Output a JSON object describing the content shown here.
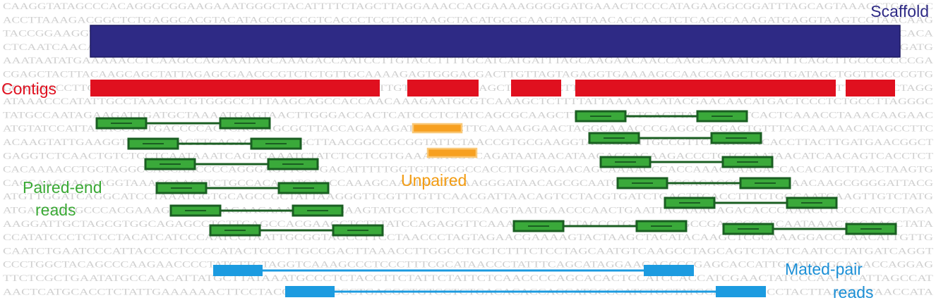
{
  "labels": {
    "scaffold": "Scaffold",
    "contigs": "Contigs",
    "paired_end_1": "Paired-end",
    "paired_end_2": "reads",
    "unpaired": "Unpaired",
    "mated_pair_1": "Mated-pair",
    "mated_pair_2": "reads"
  },
  "colors": {
    "scaffold": "#2e2a85",
    "scaffold_stroke": "#1c1960",
    "contig": "#e0101f",
    "paired_fill": "#3aa93a",
    "paired_stroke": "#1a5e22",
    "paired_label": "#3aa935",
    "unpaired_fill": "#f7a020",
    "unpaired_stroke": "#f9c877",
    "unpaired_label": "#f39c12",
    "mated": "#1c9be0",
    "mated_label": "#1b8fd6",
    "background_text": "#cfcfcf"
  },
  "background_sequence": [
    "CAAGGTATAGCCCACAGGGCGGAAGAAATGGGCTACATTTTCTAGCTTAGGAAACCACGAAAAGGGGGATGAAACTCCCCATAGAAGGCGGATTTAGCAGTAAAGCTGGACC",
    "ACCTTAAAGACGGCTCTGAGGCACGTACATACCGCCCGTCACCCTCCTCGTAAGCTACATGCGCAAGTAATTAACACCAACTCTCAGCCAAAGATGAGGTAAGTCGTAACAAG",
    "TACCGGAAGGTGTACTTGGATAACCAAAGTGTAGCTTAAACAAAGCATCTGGCTTACACCCAGAAGATTTCATATAACGCCTTATAAATTGAAGGCTCAGATGTATAACACA",
    "CTCAATCAACAACTTGGAACACTGTCACCTCTGAAATGCAATTATAGTCAGGCTACAGAATCAGTCATGTGCAAGACTTATCCATCGAATCACAAGCCAAAGTAATGGATG",
    "AAATAATATGAAAAACCTCAAGCCAGAAATAGCAAAGACCAATCCTTGTACCTTTTGCATCATGATTTAGCAAGAACAACCAAGCAAAATGAATTTCAGCTTGCCCCCCCGA",
    "CGAGCTACTTACAAGCAGCTATTAGAGCGAACCCGTCTCTGTTGCAAAAGAGTGGGACGACTTGTTAGTAGAGGTGAAAAGCCAACCGAGCTGGGTGATAGCTGGTTGCCCGTG",
    "GCAGAACCTTGACCGAAGTCTTTAAAGACTCAAGTTATGGACCGTTTGTAGAACAACAGCTTGGAGCTTACCCAATTACGCAAACTAGGTAAGAGTGCCTTTCATGGCTAGG",
    "ATAAACCCATATTGCCTAAACCTGTGGGCCTTTAAGCAGCCACCAACAAAGAATGCGTCAAAGCTCTTTTATTAAAAACATACGAACAACATGACTCCCTCTGCCTTAGGGC",
    "TATGCCAATAGAAGATTGATGCTAAAATGAGTAACTTGGGACCACTCATCCCTCTATCAGCGCAAGCTTACATCTGTGAGTTATACAGTTCACTCAAACCTAAACAAGAAC",
    "ATGTATCCATTAAACCTGTGACCCCACTCAGGAGCGCTTACCAGAAAGATTAGCCCTTCAAAAGGAACTAGGCAAACCCGAGGCCCGACTGTTTACCAAAAACATAGCCTTC",
    "ACAAGTATTGAAGGTGGCTTAAGTTCAGAGGAAAAGCTTAACGGCCGCGGTATTCTAACCGTGCGAAGGTAGCGAATTGCCGTTCAAACGACACCTTACTTGATGAACGGCT",
    "GAGGTCTCAACTGTCTCCTCAATAAATCAGTGAAATCTATCTCCTCGTGAAAAACGCCAGATAATAACATAAGACGAGAAGACCCTGTGGAATAACATCAACAGTCACCTCT",
    "CACAAAACCTGCTAGGCCACCAACCCCAGGGAGTTCCTGACATTTTTGGTGTTGGGCCACCTTGGAGAACAGCAAAACCCACCAAACAAAGACCACACATCTTAACTAAGTG",
    "CACCAAGGAGAAGGTAAACCAACTTCTGCCACAAATGAACCAAAGCAAATACCGCAAGGGATAACAGCGCAATCCTTCTACCCAGAGCCTTGGAAAACAAGCGGGGATTACG",
    "ATGTTGGATCAGGCATCCTAAATGGTGCAGCCGCTATTAAGGGTTCGTTTGTTCAACGATTAACAGTCCTACGTGATCTGAGTTCACCTTTCTGGCAATCAAGTTGTCTATG",
    "ATGACTCTTGCCCACGAAAGACCGAAAGAACAAAAGCAACAAGTATGCCTCTCTCCCAAGTAATGAACCCAACTGAATTACAAAGAGACACCCAAACCTCCCCATCCTAGA",
    "AAGGATTGCTAGCGTGGCAGAGCCTGTTGAGCCACGAAGCTCTTTATCCAGAGGTTCAAACCGGCCTTACCCTGTCAATGGCCGAGCCCCTCAATAAACTCGAACCTATA",
    "CCATATCCCTCTCCTACATCATCCCAATCCTAATTGCGGTAGCCTTCCTAACCCTAGTAGAACGAAAAGTACTAAGCTACATACAAGCTCGCAAAGGACCCAACATTGTTG",
    "CAATCTGAATCCCATTACCCCTCCCCATACTCCCTTGCCGACTTAAACCTTGGCCTGCTCTTTCTCCTAGCAATGTCAAGCCTAGCAGTCTACTCAATCCTATGATCAGGT",
    "CCCTGGCTACAGCCCAAGAACCCCTATCTTGTAGGTCAAAGCCCTCCCTTTCGCATAACCCTATTTCAGCATAGGAAGAGCCCGAGCACCATTGGATACGCAAACCAGGAG",
    "TTCTCGCTGAATATGCCAACATTATGCTTATAAATGCCCTCTACCTTCTATTCTATTCTCAACCCCAGCACACTCCATCCACCATCGAACTATCCCAATTCATTAGCCAT",
    "AACTCATGCACCTCTATTGAAAAAACTTCCTACCACTTACCCTGACGCTGTCCTCTGACACACCAGCATGCCCATCTGCTATGCAGGCCGCCTACTTAAGGTTAACCATA"
  ],
  "scaffold": {
    "start": 128,
    "end": 1275
  },
  "contigs": [
    {
      "start": 128,
      "end": 538
    },
    {
      "start": 577,
      "end": 678
    },
    {
      "start": 724,
      "end": 795
    },
    {
      "start": 815,
      "end": 1184
    },
    {
      "start": 1198,
      "end": 1268
    }
  ],
  "paired_end_reads": [
    {
      "row": 0,
      "left": [
        137,
        207
      ],
      "right": [
        312,
        382
      ]
    },
    {
      "row": 1,
      "left": [
        182,
        252
      ],
      "right": [
        356,
        426
      ]
    },
    {
      "row": 2,
      "left": [
        206,
        276
      ],
      "right": [
        380,
        450
      ]
    },
    {
      "row": 3,
      "left": [
        222,
        292
      ],
      "right": [
        395,
        465
      ]
    },
    {
      "row": 4,
      "left": [
        242,
        312
      ],
      "right": [
        415,
        485
      ]
    },
    {
      "row": 5,
      "left": [
        298,
        368
      ],
      "right": [
        472,
        542
      ]
    },
    {
      "row": 6,
      "left": [
        816,
        886
      ],
      "right": [
        988,
        1058
      ]
    },
    {
      "row": 7,
      "left": [
        835,
        905
      ],
      "right": [
        1008,
        1078
      ]
    },
    {
      "row": 8,
      "left": [
        851,
        921
      ],
      "right": [
        1024,
        1094
      ]
    },
    {
      "row": 9,
      "left": [
        875,
        945
      ],
      "right": [
        1049,
        1119
      ]
    },
    {
      "row": 10,
      "left": [
        942,
        1012
      ],
      "right": [
        1115,
        1185
      ]
    },
    {
      "row": 11,
      "left": [
        728,
        798
      ],
      "right": [
        902,
        972
      ]
    },
    {
      "row": 12,
      "left": [
        1025,
        1095
      ],
      "right": [
        1199,
        1269
      ]
    }
  ],
  "unpaired_reads": [
    {
      "start": 585,
      "end": 654
    },
    {
      "start": 606,
      "end": 675
    }
  ],
  "mated_pair_reads": [
    {
      "row": 0,
      "left": [
        302,
        372
      ],
      "right": [
        912,
        983
      ]
    },
    {
      "row": 1,
      "left": [
        404,
        474
      ],
      "right": [
        1014,
        1085
      ]
    }
  ]
}
